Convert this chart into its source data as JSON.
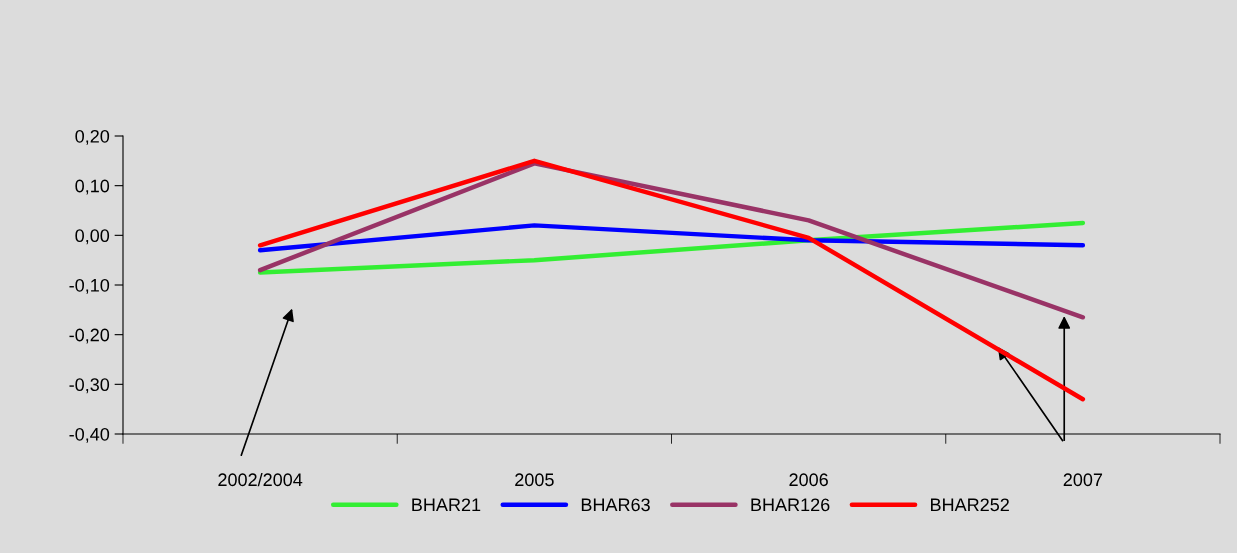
{
  "chart_data": {
    "type": "line",
    "categories": [
      "2002/2004",
      "2005",
      "2006",
      "2007"
    ],
    "series": [
      {
        "name": "BHAR21",
        "color": "#33ee33",
        "values": [
          -0.075,
          -0.05,
          -0.01,
          0.025
        ]
      },
      {
        "name": "BHAR63",
        "color": "#0000ff",
        "values": [
          -0.03,
          0.02,
          -0.01,
          -0.02
        ]
      },
      {
        "name": "BHAR126",
        "color": "#993366",
        "values": [
          -0.07,
          0.145,
          0.03,
          -0.165
        ]
      },
      {
        "name": "BHAR252",
        "color": "#ff0000",
        "values": [
          -0.02,
          0.15,
          -0.005,
          -0.33
        ]
      }
    ],
    "ylim": [
      -0.4,
      0.2
    ],
    "yticks": [
      {
        "value": -0.4,
        "label": "-0,40"
      },
      {
        "value": -0.3,
        "label": "-0,30"
      },
      {
        "value": -0.2,
        "label": "-0,20"
      },
      {
        "value": -0.1,
        "label": "-0,10"
      },
      {
        "value": 0.0,
        "label": "0,00"
      },
      {
        "value": 0.1,
        "label": "0,10"
      },
      {
        "value": 0.2,
        "label": "0,20"
      }
    ],
    "grid": false,
    "legend": "bottom",
    "marker": "none",
    "line_style": "solid"
  }
}
